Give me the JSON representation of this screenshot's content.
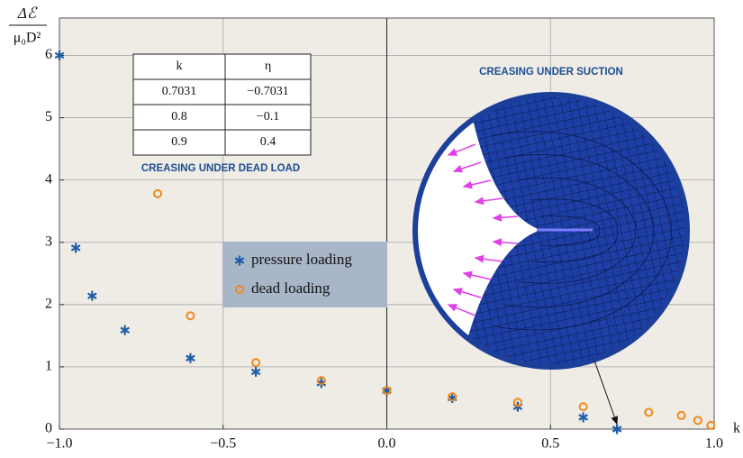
{
  "chart_data": {
    "type": "scatter",
    "xlabel": "k",
    "ylabel": [
      "Δℰ",
      "μ₀D²"
    ],
    "xlim": [
      -1.0,
      1.0
    ],
    "ylim": [
      0,
      6.6
    ],
    "xticks": [
      {
        "value": -1.0,
        "label": "−1.0"
      },
      {
        "value": -0.5,
        "label": "−0.5"
      },
      {
        "value": 0,
        "label": "0.0"
      },
      {
        "value": 0.5,
        "label": "0.5"
      },
      {
        "value": 1.0,
        "label": "1.0"
      }
    ],
    "yticks": [
      0,
      1,
      2,
      3,
      4,
      5,
      6
    ],
    "grid": true,
    "series": [
      {
        "name": "pressure loading",
        "color": "#1f5ea8",
        "marker": "star",
        "x": [
          -1.0,
          -0.95,
          -0.9,
          -0.8,
          -0.6,
          -0.4,
          -0.2,
          0,
          0.2,
          0.4,
          0.6,
          0.7031
        ],
        "values": [
          6.0,
          2.91,
          2.14,
          1.59,
          1.14,
          0.92,
          0.74,
          0.62,
          0.5,
          0.36,
          0.19,
          0
        ]
      },
      {
        "name": "dead loading",
        "color": "#f08a1c",
        "marker": "circle",
        "x": [
          -0.7,
          -0.6,
          -0.4,
          -0.2,
          0,
          0.2,
          0.4,
          0.6,
          0.8,
          0.9,
          0.95,
          0.99
        ],
        "values": [
          3.78,
          1.82,
          1.07,
          0.78,
          0.62,
          0.52,
          0.43,
          0.36,
          0.27,
          0.22,
          0.14,
          0.06
        ]
      }
    ],
    "table": {
      "columns": [
        "k",
        "η"
      ],
      "rows": [
        [
          "0.7031",
          "−0.7031"
        ],
        [
          "0.8",
          "−0.1"
        ],
        [
          "0.9",
          "0.4"
        ]
      ]
    },
    "annotations": [
      "CREASING UNDER DEAD LOAD",
      "CREASING UNDER SUCTION"
    ]
  }
}
